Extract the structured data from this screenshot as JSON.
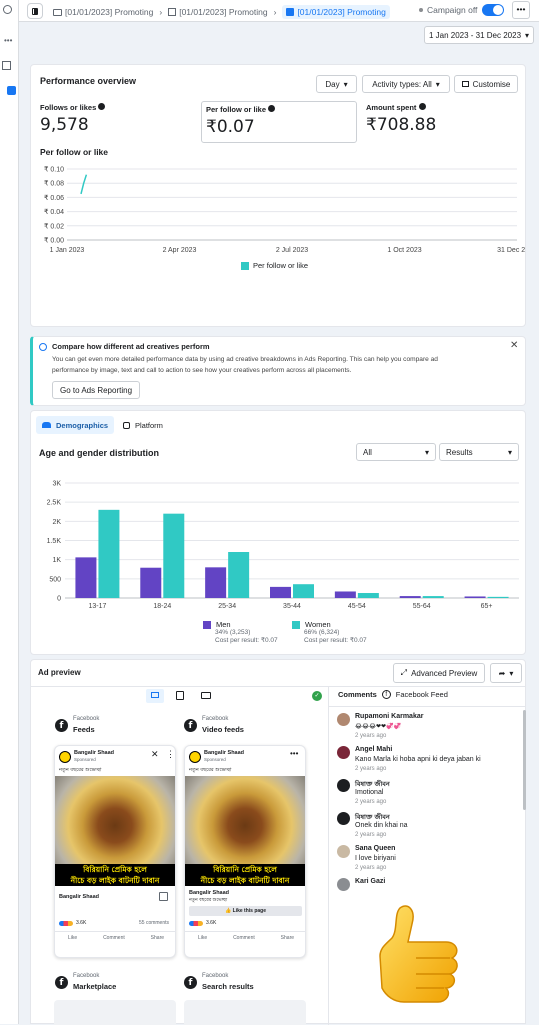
{
  "breadcrumbs": [
    "[01/01/2023] Promoting",
    "[01/01/2023] Promoting",
    "[01/01/2023] Promoting"
  ],
  "campaign_status": "Campaign off",
  "date_range": "1 Jan 2023 - 31 Dec 2023",
  "performance": {
    "title": "Performance overview",
    "day_btn": "Day",
    "activity_btn": "Activity types: All",
    "customise_btn": "Customise",
    "metrics": [
      {
        "label": "Follows or likes",
        "value": "9,578"
      },
      {
        "label": "Per follow or like",
        "value": "₹0.07"
      },
      {
        "label": "Amount spent",
        "value": "₹708.88"
      }
    ],
    "chart_title": "Per follow or like",
    "legend": "Per follow or like"
  },
  "info_banner": {
    "title": "Compare how different ad creatives perform",
    "line1": "You can get even more detailed performance data by using ad creative breakdowns in Ads Reporting. This can help you compare ad",
    "line2": "performance by image, text and call to action to see how your creatives perform across all placements.",
    "button": "Go to Ads Reporting"
  },
  "demographics": {
    "tab_active": "Demographics",
    "tab_other": "Platform",
    "title": "Age and gender distribution",
    "filter1": "All",
    "filter2": "Results",
    "legend": [
      {
        "name": "Men",
        "detail": "34% (3,253)",
        "cost": "Cost per result: ₹0.07",
        "color": "#6244c4"
      },
      {
        "name": "Women",
        "detail": "66% (6,324)",
        "cost": "Cost per result: ₹0.07",
        "color": "#30c9c4"
      }
    ]
  },
  "chart_data": [
    {
      "type": "line",
      "title": "Per follow or like",
      "y_ticks": [
        "₹ 0.10",
        "₹ 0.08",
        "₹ 0.06",
        "₹ 0.04",
        "₹ 0.02",
        "₹ 0.00"
      ],
      "ylim": [
        0,
        0.1
      ],
      "x_ticks": [
        "1 Jan 2023",
        "2 Apr 2023",
        "2 Jul 2023",
        "1 Oct 2023",
        "31 Dec 2023"
      ],
      "series": [
        {
          "name": "Per follow or like",
          "points": [
            [
              "2023-01-01",
              0.065
            ],
            [
              "2023-01-02",
              0.08
            ],
            [
              "2023-01-03",
              0.092
            ]
          ],
          "color": "#30c9c4"
        }
      ]
    },
    {
      "type": "bar",
      "categories": [
        "13-17",
        "18-24",
        "25-34",
        "35-44",
        "45-54",
        "55-64",
        "65+"
      ],
      "y_ticks": [
        "3K",
        "2.5K",
        "2K",
        "1.5K",
        "1K",
        "500",
        "0"
      ],
      "ylim": [
        0,
        3000
      ],
      "series": [
        {
          "name": "Men",
          "values": [
            1060,
            790,
            800,
            290,
            170,
            50,
            40
          ],
          "color": "#6244c4"
        },
        {
          "name": "Women",
          "values": [
            2300,
            2200,
            1200,
            360,
            130,
            50,
            30
          ],
          "color": "#30c9c4"
        }
      ]
    }
  ],
  "ad_preview": {
    "title": "Ad preview",
    "advanced_btn": "Advanced Preview",
    "placements": [
      {
        "platform": "Facebook",
        "name": "Feeds"
      },
      {
        "platform": "Facebook",
        "name": "Video feeds"
      },
      {
        "platform": "Facebook",
        "name": "Marketplace"
      },
      {
        "platform": "Facebook",
        "name": "Search results"
      }
    ],
    "page_name": "Bangalir Shaad",
    "sponsored": "Sponsored",
    "post_text": "নতুন বছরের শুভেচ্ছা",
    "caption_line1": "বিরিয়ানি প্রেমিক হলে",
    "caption_line2": "নীচে বড় লাইক বাটনটি দাবান",
    "reactions": "3.6K",
    "comments_count": "55 comments",
    "like": "Like",
    "comment": "Comment",
    "share": "Share",
    "like_page": "Like this page"
  },
  "comments": {
    "title": "Comments",
    "source": "Facebook Feed",
    "items": [
      {
        "name": "Rupamoni Karmakar",
        "text": "😂😂😂❤❤💞💞",
        "time": "2 years ago"
      },
      {
        "name": "Angel Mahi",
        "text": "Kano Marla ki hoba apni ki deya jaban ki",
        "time": "2 years ago"
      },
      {
        "name": "বিষাক্ত জীবন",
        "text": "Imotional",
        "time": "2 years ago"
      },
      {
        "name": "বিষাক্ত জীবন",
        "text": "Onek din khai na",
        "time": "2 years ago"
      },
      {
        "name": "Sana Queen",
        "text": "I love biriyani",
        "time": "2 years ago"
      },
      {
        "name": "Kari Gazi",
        "text": "",
        "time": ""
      }
    ]
  }
}
